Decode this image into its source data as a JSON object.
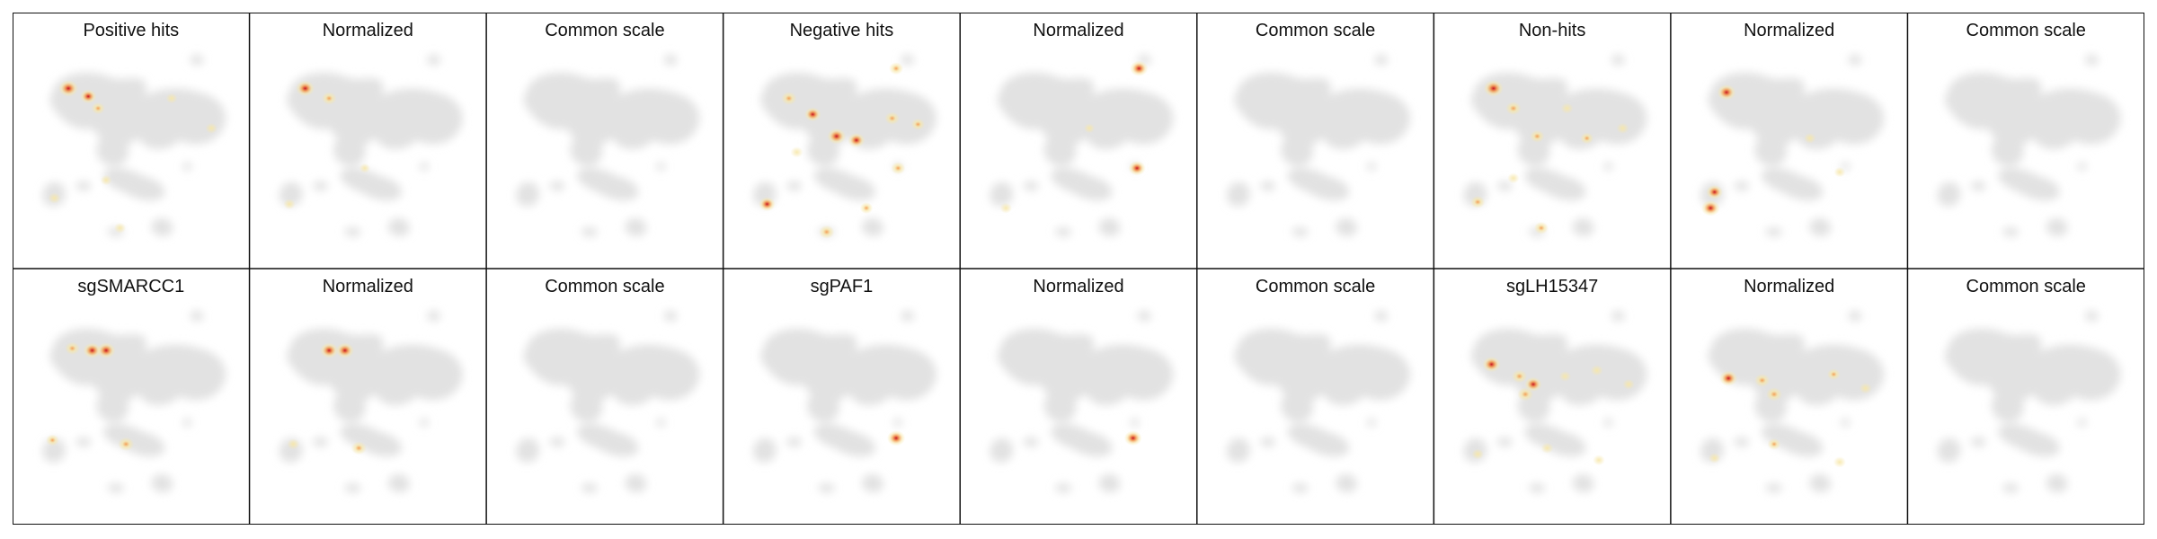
{
  "chart_data": {
    "type": "heatmap",
    "description_kind": "umap-density-panels",
    "colors": {
      "background_cloud": "#e2e2e2",
      "density_low": "#f7e7a8",
      "density_mid": "#f39a4e",
      "density_high": "#c8141e",
      "border": "#111111"
    },
    "rows": [
      {
        "panels": [
          {
            "title": "Positive hits",
            "hotspots": [
              [
                0.18,
                0.2,
                1.0
              ],
              [
                0.28,
                0.24,
                0.7
              ],
              [
                0.33,
                0.3,
                0.45
              ],
              [
                0.7,
                0.25,
                0.25
              ],
              [
                0.9,
                0.4,
                0.3
              ],
              [
                0.11,
                0.75,
                0.35
              ],
              [
                0.37,
                0.66,
                0.25
              ],
              [
                0.44,
                0.9,
                0.3
              ]
            ]
          },
          {
            "title": "Normalized",
            "hotspots": [
              [
                0.18,
                0.2,
                0.9
              ],
              [
                0.3,
                0.25,
                0.55
              ],
              [
                0.1,
                0.78,
                0.3
              ],
              [
                0.48,
                0.6,
                0.2
              ]
            ]
          },
          {
            "title": "Common scale",
            "hotspots": []
          },
          {
            "title": "Negative hits",
            "hotspots": [
              [
                0.77,
                0.1,
                0.5
              ],
              [
                0.23,
                0.25,
                0.6
              ],
              [
                0.35,
                0.33,
                0.7
              ],
              [
                0.47,
                0.44,
                0.9
              ],
              [
                0.57,
                0.46,
                0.75
              ],
              [
                0.75,
                0.35,
                0.55
              ],
              [
                0.88,
                0.38,
                0.45
              ],
              [
                0.12,
                0.78,
                0.7
              ],
              [
                0.78,
                0.6,
                0.5
              ],
              [
                0.62,
                0.8,
                0.4
              ],
              [
                0.42,
                0.92,
                0.6
              ],
              [
                0.27,
                0.52,
                0.35
              ]
            ]
          },
          {
            "title": "Normalized",
            "hotspots": [
              [
                0.8,
                0.1,
                0.85
              ],
              [
                0.79,
                0.6,
                0.75
              ],
              [
                0.13,
                0.8,
                0.3
              ],
              [
                0.55,
                0.4,
                0.2
              ]
            ]
          },
          {
            "title": "Common scale",
            "hotspots": []
          },
          {
            "title": "Non-hits",
            "hotspots": [
              [
                0.2,
                0.2,
                1.0
              ],
              [
                0.3,
                0.3,
                0.6
              ],
              [
                0.42,
                0.44,
                0.5
              ],
              [
                0.57,
                0.3,
                0.35
              ],
              [
                0.67,
                0.45,
                0.4
              ],
              [
                0.85,
                0.4,
                0.35
              ],
              [
                0.12,
                0.77,
                0.5
              ],
              [
                0.44,
                0.9,
                0.5
              ],
              [
                0.3,
                0.65,
                0.3
              ]
            ]
          },
          {
            "title": "Normalized",
            "hotspots": [
              [
                0.18,
                0.22,
                0.9
              ],
              [
                0.12,
                0.72,
                0.7
              ],
              [
                0.1,
                0.8,
                0.9
              ],
              [
                0.6,
                0.45,
                0.3
              ],
              [
                0.75,
                0.62,
                0.25
              ]
            ]
          },
          {
            "title": "Common scale",
            "hotspots": []
          }
        ]
      },
      {
        "panels": [
          {
            "title": "sgSMARCC1",
            "hotspots": [
              [
                0.2,
                0.22,
                0.55
              ],
              [
                0.3,
                0.23,
                0.85
              ],
              [
                0.37,
                0.23,
                0.9
              ],
              [
                0.47,
                0.7,
                0.65
              ],
              [
                0.1,
                0.68,
                0.4
              ]
            ]
          },
          {
            "title": "Normalized",
            "hotspots": [
              [
                0.3,
                0.23,
                0.85
              ],
              [
                0.38,
                0.23,
                0.85
              ],
              [
                0.45,
                0.72,
                0.6
              ],
              [
                0.12,
                0.7,
                0.35
              ]
            ]
          },
          {
            "title": "Common scale",
            "hotspots": []
          },
          {
            "title": "sgPAF1",
            "hotspots": [
              [
                0.77,
                0.67,
                0.85
              ]
            ]
          },
          {
            "title": "Normalized",
            "hotspots": [
              [
                0.77,
                0.67,
                0.8
              ]
            ]
          },
          {
            "title": "Common scale",
            "hotspots": []
          },
          {
            "title": "sgLH15347",
            "hotspots": [
              [
                0.19,
                0.3,
                0.85
              ],
              [
                0.33,
                0.36,
                0.6
              ],
              [
                0.4,
                0.4,
                0.75
              ],
              [
                0.36,
                0.45,
                0.65
              ],
              [
                0.56,
                0.36,
                0.3
              ],
              [
                0.72,
                0.33,
                0.35
              ],
              [
                0.88,
                0.4,
                0.3
              ],
              [
                0.12,
                0.75,
                0.3
              ],
              [
                0.47,
                0.72,
                0.35
              ],
              [
                0.73,
                0.78,
                0.3
              ]
            ]
          },
          {
            "title": "Normalized",
            "hotspots": [
              [
                0.19,
                0.37,
                0.85
              ],
              [
                0.36,
                0.38,
                0.6
              ],
              [
                0.42,
                0.45,
                0.65
              ],
              [
                0.72,
                0.35,
                0.4
              ],
              [
                0.88,
                0.42,
                0.35
              ],
              [
                0.42,
                0.7,
                0.4
              ],
              [
                0.12,
                0.77,
                0.3
              ],
              [
                0.75,
                0.79,
                0.35
              ]
            ]
          },
          {
            "title": "Common scale",
            "hotspots": []
          }
        ]
      }
    ]
  }
}
